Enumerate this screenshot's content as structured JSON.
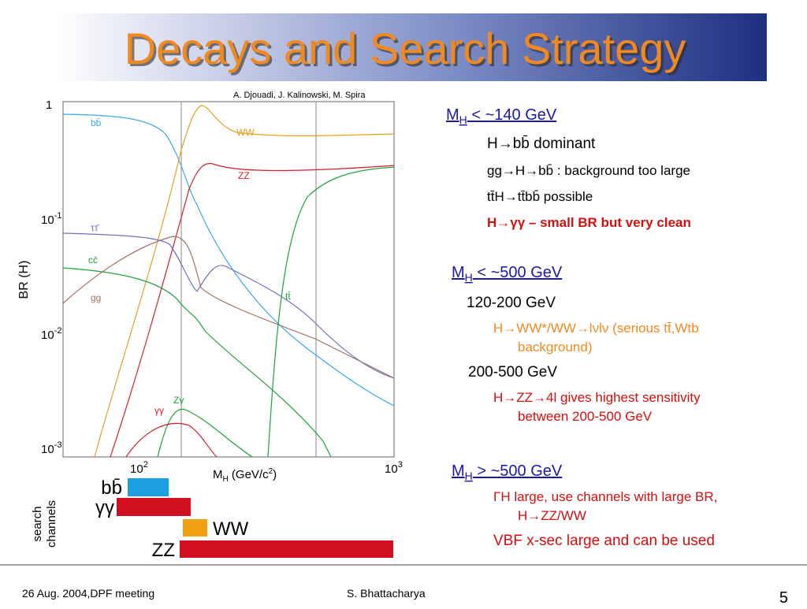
{
  "title": "Decays and Search Strategy",
  "plot": {
    "credit": "A. Djouadi,  J. Kalinowski,  M. Spira",
    "ylabel": "BR (H)",
    "xlabel": {
      "main": "M",
      "sub": "H",
      "rest": "  (GeV/c",
      "sup": "2",
      "end": ")"
    },
    "yticks": [
      {
        "base": "1",
        "exp": ""
      },
      {
        "base": "10",
        "exp": "-1"
      },
      {
        "base": "10",
        "exp": "-2"
      },
      {
        "base": "10",
        "exp": "-3"
      }
    ],
    "xticks": [
      {
        "base": "10",
        "exp": "2"
      },
      {
        "base": "10",
        "exp": "3"
      }
    ],
    "curve_labels": [
      "bb̄",
      "WW",
      "ZZ",
      "ττ̄",
      "cc̄",
      "gg",
      "tt̄",
      "Zγ",
      "γγ"
    ]
  },
  "channels": {
    "label": "search channels",
    "names": [
      "bb̄",
      "γγ",
      "WW",
      "ZZ"
    ]
  },
  "sections": [
    {
      "m": "M",
      "sub": "H",
      "rest": " < ~140 GeV"
    },
    {
      "m": "M",
      "sub": "H",
      "rest": " < ~500 GeV"
    },
    {
      "m": "M",
      "sub": "H",
      "rest": " > ~500 GeV"
    }
  ],
  "lines": [
    "H→bb̄ dominant",
    "gg→H→bb̄ : background too large",
    "tt̄H→tt̄bb̄ possible",
    "H→γγ – small BR but very clean",
    "120-200 GeV",
    "H→WW*/WW→lνlν (serious tt̄,Wtb",
    "background)",
    "200-500 GeV",
    "H→ZZ→4l gives highest sensitivity",
    "between 200-500 GeV",
    "ΓH large, use channels with large BR,",
    "H→ZZ/WW",
    "VBF x-sec large and can be used"
  ],
  "footer": {
    "left": "26 Aug. 2004,DPF meeting",
    "center": "S. Bhattacharya",
    "page": "5"
  }
}
